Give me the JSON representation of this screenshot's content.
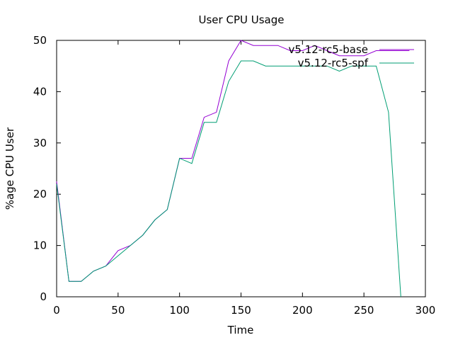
{
  "chart_data": {
    "type": "line",
    "title": "User CPU Usage",
    "xlabel": "Time",
    "ylabel": "%age CPU User",
    "xlim": [
      0,
      300
    ],
    "ylim": [
      0,
      50
    ],
    "x_ticks": [
      0,
      50,
      100,
      150,
      200,
      250,
      300
    ],
    "y_ticks": [
      0,
      10,
      20,
      30,
      40,
      50
    ],
    "grid": false,
    "legend_position": "top-right",
    "series": [
      {
        "name": "v5.12-rc5-base",
        "color": "#9400d3",
        "x": [
          0,
          10,
          20,
          30,
          40,
          50,
          60,
          70,
          80,
          90,
          100,
          110,
          120,
          130,
          140,
          150,
          160,
          170,
          180,
          190,
          200,
          210,
          220,
          230,
          240,
          250,
          260,
          270,
          287
        ],
        "y": [
          22.5,
          3,
          3,
          5,
          6,
          9,
          10,
          12,
          15,
          17,
          27,
          27,
          35,
          36,
          46,
          50,
          49,
          49,
          49,
          48,
          48,
          49,
          48,
          47,
          47,
          47,
          48,
          48,
          48
        ]
      },
      {
        "name": "v5.12-rc5-spf",
        "color": "#009e73",
        "x": [
          0,
          10,
          20,
          30,
          40,
          50,
          60,
          70,
          80,
          90,
          100,
          110,
          120,
          130,
          140,
          150,
          160,
          170,
          180,
          190,
          200,
          210,
          220,
          230,
          240,
          250,
          260,
          270,
          280
        ],
        "y": [
          22,
          3,
          3,
          5,
          6,
          8,
          10,
          12,
          15,
          17,
          27,
          26,
          34,
          34,
          42,
          46,
          46,
          45,
          45,
          45,
          45,
          45,
          45,
          44,
          45,
          45,
          45,
          36,
          0
        ]
      }
    ]
  }
}
